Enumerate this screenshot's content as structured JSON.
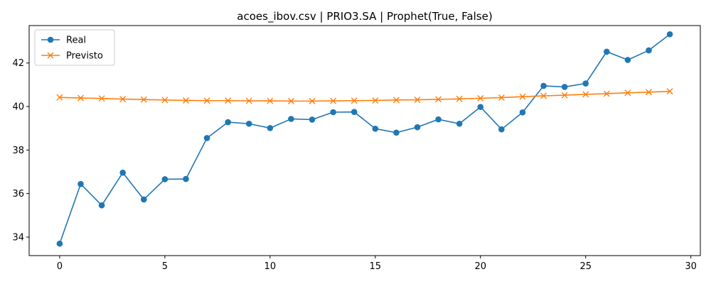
{
  "chart_data": {
    "type": "line",
    "title": "acoes_ibov.csv | PRIO3.SA | Prophet(True, False)",
    "xlabel": "",
    "ylabel": "",
    "x": [
      0,
      1,
      2,
      3,
      4,
      5,
      6,
      7,
      8,
      9,
      10,
      11,
      12,
      13,
      14,
      15,
      16,
      17,
      18,
      19,
      20,
      21,
      22,
      23,
      24,
      25,
      26,
      27,
      28,
      29
    ],
    "xlim": [
      -1.45,
      30.45
    ],
    "ylim": [
      33.15,
      43.72
    ],
    "xticks": [
      0,
      5,
      10,
      15,
      20,
      25,
      30
    ],
    "yticks": [
      34,
      36,
      38,
      40,
      42
    ],
    "grid": false,
    "legend_position": "upper left",
    "series": [
      {
        "name": "Real",
        "color": "#1f77b4",
        "marker": "circle",
        "values": [
          33.7,
          36.44,
          35.46,
          36.96,
          35.73,
          36.66,
          36.67,
          38.55,
          39.28,
          39.21,
          39.01,
          39.43,
          39.4,
          39.74,
          39.75,
          38.98,
          38.8,
          39.05,
          39.41,
          39.21,
          39.98,
          38.95,
          39.73,
          40.95,
          40.9,
          41.06,
          42.52,
          42.14,
          42.58,
          43.32
        ]
      },
      {
        "name": "Previsto",
        "color": "#ff7f0e",
        "marker": "x",
        "values": [
          40.42,
          40.39,
          40.37,
          40.34,
          40.32,
          40.3,
          40.28,
          40.27,
          40.27,
          40.26,
          40.26,
          40.25,
          40.25,
          40.26,
          40.27,
          40.28,
          40.3,
          40.31,
          40.33,
          40.35,
          40.38,
          40.41,
          40.45,
          40.49,
          40.52,
          40.56,
          40.59,
          40.63,
          40.66,
          40.7
        ]
      }
    ]
  }
}
